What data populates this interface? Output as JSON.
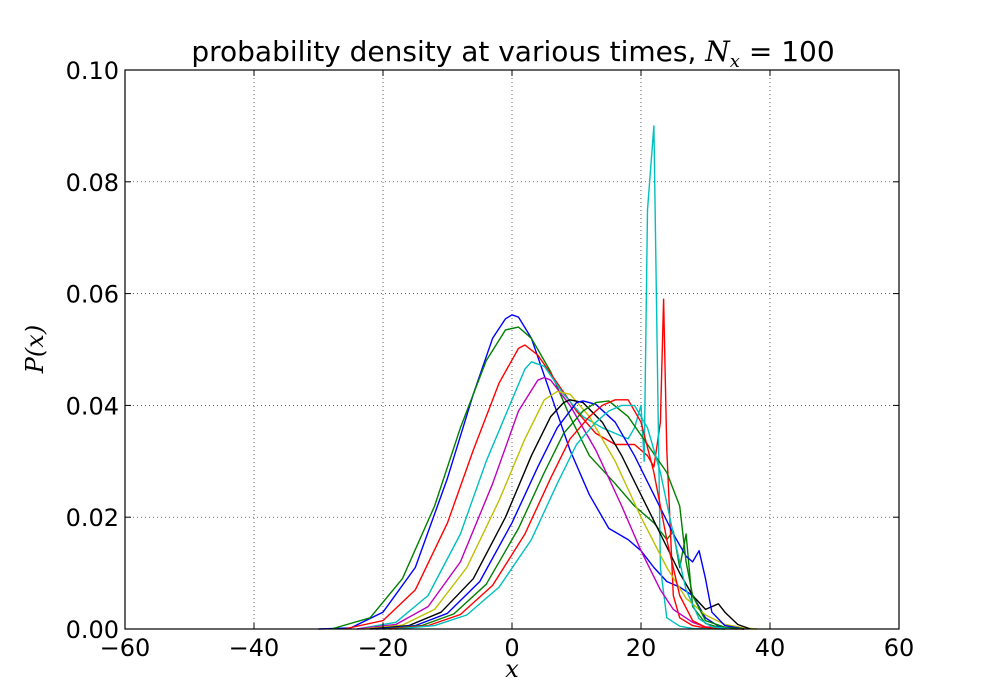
{
  "chart_data": {
    "type": "line",
    "title": "probability density at various times, ",
    "title_math": "N",
    "title_math_sub": "x",
    "title_eq": " = 100",
    "xlabel": "x",
    "ylabel": "P(x)",
    "xlim": [
      -60,
      60
    ],
    "ylim": [
      0,
      0.1
    ],
    "xticks": [
      -60,
      -40,
      -20,
      0,
      20,
      40,
      60
    ],
    "xtick_labels": [
      "−60",
      "−40",
      "−20",
      "0",
      "20",
      "40",
      "60"
    ],
    "yticks": [
      0,
      0.02,
      0.04,
      0.06,
      0.08,
      0.1
    ],
    "ytick_labels": [
      "0.00",
      "0.02",
      "0.04",
      "0.06",
      "0.08",
      "0.10"
    ],
    "grid": true,
    "series": [
      {
        "color": "#0000ff",
        "x": [
          -30,
          -25,
          -20,
          -15,
          -10,
          -6,
          -3,
          -1,
          0,
          1,
          3,
          6,
          9,
          12,
          15,
          18,
          20,
          22,
          24,
          26,
          28,
          30,
          32,
          34
        ],
        "y": [
          0,
          0.0002,
          0.003,
          0.011,
          0.027,
          0.042,
          0.052,
          0.0555,
          0.0562,
          0.0558,
          0.052,
          0.042,
          0.032,
          0.024,
          0.018,
          0.016,
          0.014,
          0.011,
          0.0085,
          0.0075,
          0.006,
          0.002,
          0.0005,
          0
        ]
      },
      {
        "color": "#008000",
        "x": [
          -28,
          -22,
          -17,
          -12,
          -8,
          -4,
          -1,
          1,
          3,
          6,
          9,
          12,
          16,
          19,
          22,
          24,
          25,
          26,
          27,
          28,
          29,
          30,
          32,
          36
        ],
        "y": [
          0,
          0.002,
          0.009,
          0.022,
          0.036,
          0.048,
          0.0535,
          0.054,
          0.052,
          0.046,
          0.038,
          0.031,
          0.026,
          0.022,
          0.019,
          0.016,
          0.0175,
          0.011,
          0.017,
          0.004,
          0.0025,
          0.001,
          0.0003,
          0
        ]
      },
      {
        "color": "#ff0000",
        "x": [
          -26,
          -20,
          -15,
          -10,
          -6,
          -2,
          1,
          2,
          4,
          7,
          10,
          13,
          16,
          19,
          21,
          22,
          23,
          23.5,
          24,
          25,
          26,
          28,
          30,
          35
        ],
        "y": [
          0,
          0.0015,
          0.007,
          0.019,
          0.032,
          0.044,
          0.0502,
          0.0508,
          0.049,
          0.044,
          0.039,
          0.035,
          0.033,
          0.033,
          0.031,
          0.029,
          0.037,
          0.059,
          0.032,
          0.006,
          0.002,
          0.0006,
          0.0002,
          0
        ]
      },
      {
        "color": "#00bfbf",
        "x": [
          -24,
          -18,
          -13,
          -8,
          -4,
          0,
          2,
          3,
          5,
          8,
          11,
          14,
          16,
          18,
          19,
          20,
          20.5,
          21,
          22,
          23,
          24,
          26,
          28,
          33
        ],
        "y": [
          0,
          0.0012,
          0.006,
          0.017,
          0.03,
          0.041,
          0.0465,
          0.0478,
          0.047,
          0.042,
          0.038,
          0.036,
          0.035,
          0.034,
          0.036,
          0.04,
          0.03,
          0.075,
          0.09,
          0.011,
          0.002,
          0.0005,
          0.0001,
          0
        ]
      },
      {
        "color": "#bf00bf",
        "x": [
          -24,
          -18,
          -13,
          -8,
          -3,
          1,
          4,
          5,
          6,
          9,
          13,
          17,
          20,
          23,
          25,
          28,
          30,
          33,
          36
        ],
        "y": [
          0,
          0.0008,
          0.004,
          0.012,
          0.026,
          0.039,
          0.0445,
          0.045,
          0.0445,
          0.04,
          0.032,
          0.022,
          0.014,
          0.007,
          0.0035,
          0.0012,
          0.0004,
          0.0001,
          0
        ]
      },
      {
        "color": "#bfbf00",
        "x": [
          -23,
          -17,
          -12,
          -7,
          -2,
          2,
          5,
          7,
          9,
          12,
          16,
          20,
          24,
          27,
          30,
          33,
          36,
          38
        ],
        "y": [
          0,
          0.0007,
          0.0035,
          0.011,
          0.023,
          0.034,
          0.041,
          0.0425,
          0.042,
          0.038,
          0.03,
          0.02,
          0.011,
          0.0055,
          0.0025,
          0.0008,
          0.0002,
          0
        ]
      },
      {
        "color": "#000000",
        "x": [
          -22,
          -16,
          -11,
          -6,
          -1,
          3,
          6,
          8,
          9,
          11,
          14,
          17,
          20,
          23,
          26,
          28,
          30,
          31,
          32,
          33,
          35,
          37
        ],
        "y": [
          0,
          0.0006,
          0.003,
          0.009,
          0.02,
          0.031,
          0.038,
          0.0405,
          0.041,
          0.0405,
          0.037,
          0.031,
          0.024,
          0.017,
          0.01,
          0.006,
          0.0035,
          0.004,
          0.0045,
          0.003,
          0.0008,
          0
        ]
      },
      {
        "color": "#0000ff",
        "x": [
          -21,
          -15,
          -10,
          -5,
          0,
          4,
          7,
          10,
          11,
          13,
          16,
          19,
          22,
          25,
          27,
          28,
          29,
          30,
          31,
          33,
          36
        ],
        "y": [
          0,
          0.0006,
          0.0028,
          0.0085,
          0.019,
          0.029,
          0.036,
          0.0405,
          0.0408,
          0.0402,
          0.037,
          0.031,
          0.024,
          0.017,
          0.013,
          0.012,
          0.014,
          0.009,
          0.003,
          0.0006,
          0
        ]
      },
      {
        "color": "#008000",
        "x": [
          -20,
          -14,
          -9,
          -4,
          1,
          5,
          8,
          11,
          13,
          15,
          18,
          21,
          24,
          26,
          27,
          28,
          30,
          33,
          36
        ],
        "y": [
          0,
          0.0006,
          0.0027,
          0.008,
          0.018,
          0.028,
          0.035,
          0.039,
          0.0405,
          0.0408,
          0.038,
          0.033,
          0.028,
          0.022,
          0.012,
          0.006,
          0.0015,
          0.0003,
          0
        ]
      },
      {
        "color": "#ff0000",
        "x": [
          -19,
          -13,
          -8,
          -3,
          2,
          6,
          9,
          12,
          14,
          16,
          18,
          20,
          22,
          24,
          26,
          28,
          30,
          33
        ],
        "y": [
          0,
          0.0006,
          0.0026,
          0.0078,
          0.017,
          0.027,
          0.034,
          0.038,
          0.04,
          0.041,
          0.041,
          0.037,
          0.028,
          0.016,
          0.006,
          0.0015,
          0.0003,
          0
        ]
      },
      {
        "color": "#00bfbf",
        "x": [
          -18,
          -12,
          -7,
          -2,
          3,
          7,
          10,
          13,
          15,
          17,
          19,
          21,
          23,
          25,
          27,
          29,
          31,
          34
        ],
        "y": [
          0,
          0.0006,
          0.0025,
          0.0075,
          0.016,
          0.026,
          0.033,
          0.037,
          0.039,
          0.04,
          0.04,
          0.036,
          0.028,
          0.017,
          0.007,
          0.0018,
          0.0004,
          0
        ]
      }
    ]
  }
}
